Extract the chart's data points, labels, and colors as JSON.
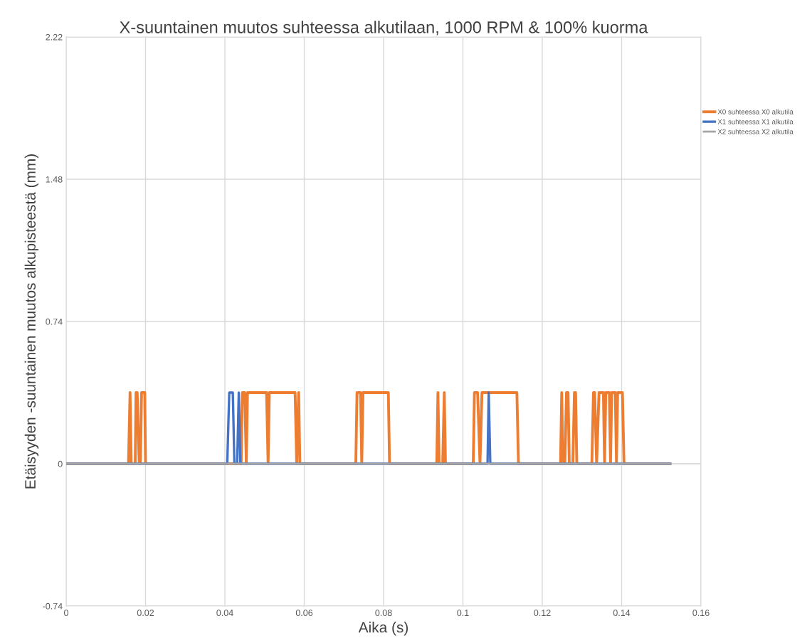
{
  "chart_data": {
    "type": "line",
    "title": "X-suuntainen muutos suhteessa alkutilaan, 1000 RPM & 100% kuorma",
    "xlabel": "Aika (s)",
    "ylabel": "Etäisyyden -suuntainen muutos alkupisteestä (mm)",
    "xlim": [
      0,
      0.16
    ],
    "xticks": [
      0,
      0.02,
      0.04,
      0.06,
      0.08,
      0.1,
      0.12,
      0.14,
      0.16
    ],
    "ylim": [
      -0.74,
      2.22
    ],
    "yticks": [
      -0.74,
      0,
      0.74,
      1.48,
      2.22
    ],
    "grid": true,
    "legend": "right",
    "marker": "none",
    "line_style": "solid",
    "series": [
      {
        "name": "X0 suhteessa X0 alkutila",
        "color": "#ed7d31",
        "x": [
          0,
          0.0157,
          0.0161,
          0.0164,
          0.0174,
          0.0176,
          0.0179,
          0.0184,
          0.0187,
          0.019,
          0.0198,
          0.02,
          0.0441,
          0.0444,
          0.045,
          0.0454,
          0.0457,
          0.0505,
          0.0509,
          0.0512,
          0.0577,
          0.0581,
          0.0586,
          0.0589,
          0.073,
          0.0733,
          0.0742,
          0.0745,
          0.0748,
          0.0812,
          0.0815,
          0.0934,
          0.0937,
          0.094,
          0.0949,
          0.0953,
          0.0956,
          0.1026,
          0.1029,
          0.1037,
          0.1043,
          0.1048,
          0.1136,
          0.114,
          0.1246,
          0.1249,
          0.1252,
          0.1257,
          0.1261,
          0.1265,
          0.1268,
          0.1277,
          0.1281,
          0.1284,
          0.1287,
          0.1325,
          0.1329,
          0.1332,
          0.1337,
          0.1343,
          0.1354,
          0.1357,
          0.136,
          0.1369,
          0.1372,
          0.1375,
          0.1384,
          0.1387,
          0.139,
          0.1402,
          0.1406,
          0.1522
        ],
        "values": [
          0,
          0,
          0.37,
          0,
          0,
          0.37,
          0.37,
          0,
          0,
          0.37,
          0.37,
          0,
          0,
          0.37,
          0.37,
          0,
          0.37,
          0.37,
          0,
          0.37,
          0.37,
          0,
          0.37,
          0,
          0,
          0.37,
          0.37,
          0,
          0.37,
          0.37,
          0,
          0,
          0.37,
          0,
          0,
          0.37,
          0,
          0,
          0.37,
          0.37,
          0,
          0.37,
          0.37,
          0,
          0,
          0.37,
          0,
          0,
          0.37,
          0.37,
          0,
          0,
          0.37,
          0.37,
          0,
          0,
          0.37,
          0.37,
          0,
          0.37,
          0.37,
          0,
          0.37,
          0.37,
          0,
          0.37,
          0.37,
          0,
          0.37,
          0.37,
          0,
          0
        ]
      },
      {
        "name": "X1 suhteessa X1 alkutila",
        "color": "#4472c4",
        "x": [
          0,
          0.0406,
          0.0411,
          0.042,
          0.0424,
          0.0431,
          0.0435,
          0.0439,
          0.1062,
          0.1065,
          0.1069,
          0.1522
        ],
        "values": [
          0,
          0,
          0.37,
          0.37,
          0,
          0,
          0.37,
          0,
          0,
          0.37,
          0,
          0
        ]
      },
      {
        "name": "X2 suhteessa X2 alkutila",
        "color": "#a5a5a5",
        "x": [
          0,
          0.1522
        ],
        "values": [
          0,
          0
        ]
      }
    ]
  }
}
